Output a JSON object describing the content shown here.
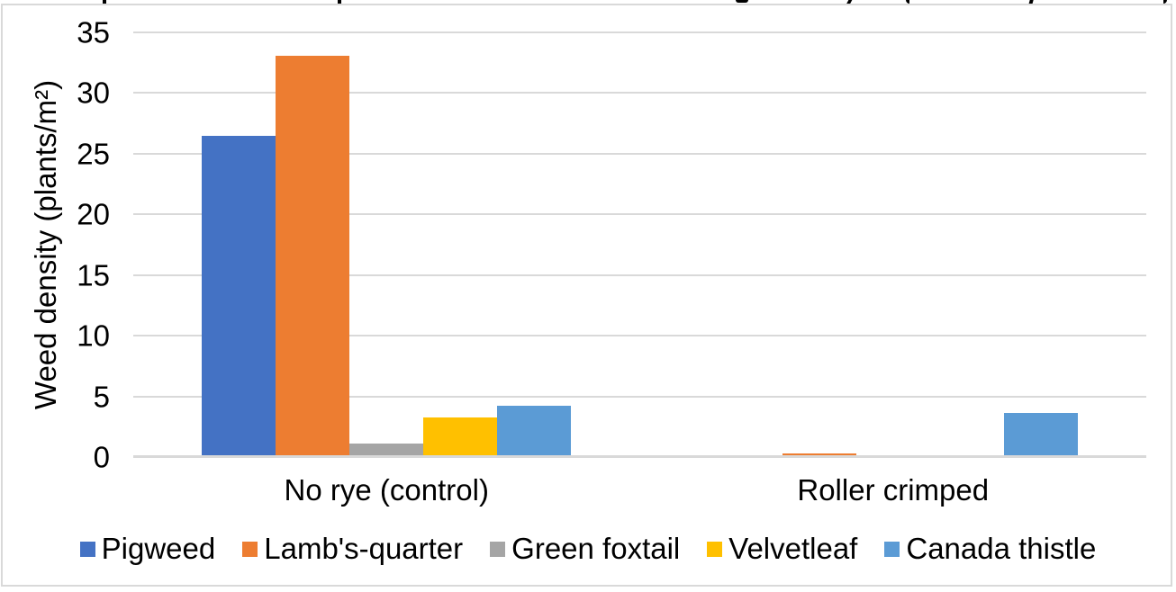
{
  "chart_data": {
    "type": "bar",
    "categories": [
      "No rye (control)",
      "Roller crimped"
    ],
    "series": [
      {
        "name": "Pigweed",
        "color": "#4472C4",
        "values": [
          26.3,
          0
        ]
      },
      {
        "name": "Lamb's-quarter",
        "color": "#ED7D31",
        "values": [
          32.9,
          0.1
        ]
      },
      {
        "name": "Green foxtail",
        "color": "#A5A5A5",
        "values": [
          1.0,
          0
        ]
      },
      {
        "name": "Velvetleaf",
        "color": "#FFC000",
        "values": [
          3.1,
          0
        ]
      },
      {
        "name": "Canada thistle",
        "color": "#5B9BD5",
        "values": [
          4.1,
          3.5
        ]
      }
    ],
    "ylabel": "Weed density (plants/m²)",
    "xlabel": "",
    "yticks": [
      0,
      5,
      10,
      15,
      20,
      25,
      30,
      35
    ],
    "ylim": [
      0,
      35
    ],
    "grid": true,
    "gridline_color": "#D9D9D9",
    "text_color": "#000000",
    "legend_position": "bottom"
  }
}
